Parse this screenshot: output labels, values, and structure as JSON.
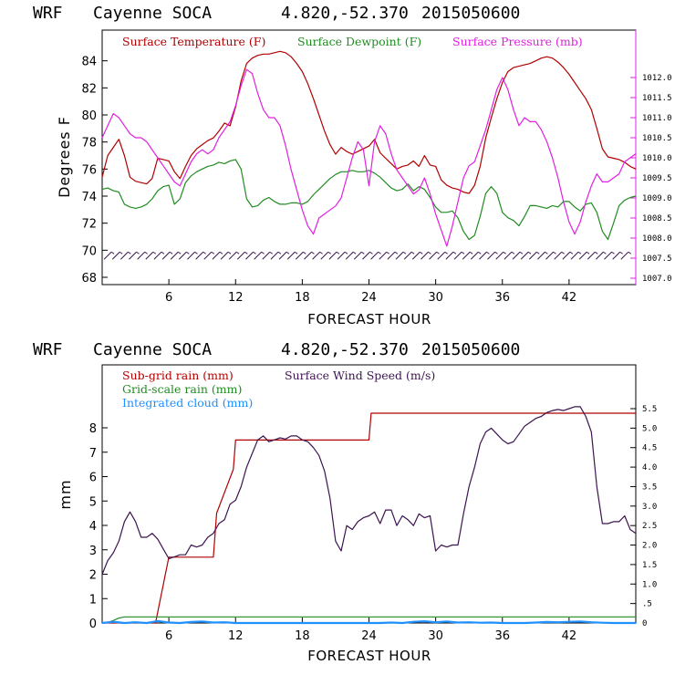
{
  "colors": {
    "temp": "#b00000",
    "dew": "#228b22",
    "pres": "#e020e0",
    "wind": "#3c1450",
    "subgrid": "#b00000",
    "gridscale": "#228b22",
    "cloud": "#1e90ff",
    "barb": "#3c1450"
  },
  "chart_data": [
    {
      "type": "line",
      "header": {
        "model": "WRF",
        "station": "Cayenne SOCA",
        "lat": "4.820,",
        "lon": "-52.370",
        "init": "2015050600"
      },
      "xlabel": "FORECAST HOUR",
      "ylabel": "Degrees F",
      "xlim": [
        0,
        48
      ],
      "ylim": [
        68,
        86
      ],
      "xticks": [
        "6",
        "12",
        "18",
        "24",
        "30",
        "36",
        "42"
      ],
      "yticks": [
        "68",
        "70",
        "72",
        "74",
        "76",
        "78",
        "80",
        "82",
        "84"
      ],
      "y2lim": [
        1007.0,
        1013.0
      ],
      "y2ticks": [
        "1007.0",
        "1007.5",
        "1008.0",
        "1008.5",
        "1009.0",
        "1009.5",
        "1010.0",
        "1010.5",
        "1011.0",
        "1011.5",
        "1012.0"
      ],
      "legend": [
        "Surface Temperature (F)",
        "Surface Dewpoint (F)",
        "Surface Pressure (mb)"
      ],
      "series": [
        {
          "name": "Surface Temperature (F)",
          "axis": "left",
          "x": [
            0,
            0.5,
            1,
            1.5,
            2,
            2.5,
            3,
            3.5,
            4,
            4.5,
            5,
            5.5,
            6,
            6.5,
            7,
            7.5,
            8,
            8.5,
            9,
            9.5,
            10,
            10.5,
            11,
            11.5,
            12,
            12.5,
            13,
            13.5,
            14,
            14.5,
            15,
            15.5,
            16,
            16.5,
            17,
            17.5,
            18,
            18.5,
            19,
            19.5,
            20,
            20.5,
            21,
            21.5,
            22,
            22.5,
            23,
            23.5,
            24,
            24.5,
            25,
            25.5,
            26,
            26.5,
            27,
            27.5,
            28,
            28.5,
            29,
            29.5,
            30,
            30.5,
            31,
            31.5,
            32,
            32.5,
            33,
            33.5,
            34,
            34.5,
            35,
            35.5,
            36,
            36.5,
            37,
            37.5,
            38,
            38.5,
            39,
            39.5,
            40,
            40.5,
            41,
            41.5,
            42,
            42.5,
            43,
            43.5,
            44,
            44.5,
            45,
            45.5,
            46,
            46.5,
            47,
            47.5,
            48
          ],
          "values": [
            75.4,
            77.0,
            77.6,
            78.2,
            77.0,
            75.4,
            75.1,
            75.0,
            74.9,
            75.3,
            76.8,
            76.7,
            76.6,
            75.8,
            75.3,
            76.2,
            77.0,
            77.5,
            77.8,
            78.1,
            78.3,
            78.8,
            79.4,
            79.2,
            80.6,
            82.5,
            83.8,
            84.2,
            84.4,
            84.5,
            84.5,
            84.6,
            84.7,
            84.6,
            84.3,
            83.8,
            83.2,
            82.3,
            81.2,
            80.0,
            78.8,
            77.8,
            77.1,
            77.6,
            77.3,
            77.1,
            77.3,
            77.5,
            77.7,
            78.2,
            77.2,
            76.8,
            76.4,
            76.0,
            76.2,
            76.3,
            76.6,
            76.2,
            77.0,
            76.3,
            76.2,
            75.2,
            74.8,
            74.6,
            74.5,
            74.3,
            74.2,
            74.8,
            76.2,
            78.3,
            79.8,
            81.2,
            82.4,
            83.2,
            83.5,
            83.6,
            83.7,
            83.8,
            84.0,
            84.2,
            84.3,
            84.2,
            83.9,
            83.5,
            83.0,
            82.4,
            81.8,
            81.2,
            80.4,
            79.0,
            77.5,
            76.9,
            76.8,
            76.7,
            76.5,
            76.2,
            76.0
          ]
        },
        {
          "name": "Surface Dewpoint (F)",
          "axis": "left",
          "x": [
            0,
            0.5,
            1,
            1.5,
            2,
            2.5,
            3,
            3.5,
            4,
            4.5,
            5,
            5.5,
            6,
            6.5,
            7,
            7.5,
            8,
            8.5,
            9,
            9.5,
            10,
            10.5,
            11,
            11.5,
            12,
            12.5,
            13,
            13.5,
            14,
            14.5,
            15,
            15.5,
            16,
            16.5,
            17,
            17.5,
            18,
            18.5,
            19,
            19.5,
            20,
            20.5,
            21,
            21.5,
            22,
            22.5,
            23,
            23.5,
            24,
            24.5,
            25,
            25.5,
            26,
            26.5,
            27,
            27.5,
            28,
            28.5,
            29,
            29.5,
            30,
            30.5,
            31,
            31.5,
            32,
            32.5,
            33,
            33.5,
            34,
            34.5,
            35,
            35.5,
            36,
            36.5,
            37,
            37.5,
            38,
            38.5,
            39,
            39.5,
            40,
            40.5,
            41,
            41.5,
            42,
            42.5,
            43,
            43.5,
            44,
            44.5,
            45,
            45.5,
            46,
            46.5,
            47,
            47.5,
            48
          ],
          "values": [
            74.5,
            74.6,
            74.4,
            74.3,
            73.4,
            73.2,
            73.1,
            73.2,
            73.4,
            73.8,
            74.4,
            74.7,
            74.8,
            73.4,
            73.8,
            75.0,
            75.5,
            75.8,
            76.0,
            76.2,
            76.3,
            76.5,
            76.4,
            76.6,
            76.7,
            76.0,
            73.8,
            73.2,
            73.3,
            73.7,
            73.9,
            73.6,
            73.4,
            73.4,
            73.5,
            73.5,
            73.4,
            73.6,
            74.1,
            74.5,
            74.9,
            75.3,
            75.6,
            75.8,
            75.8,
            75.9,
            75.8,
            75.8,
            75.9,
            75.7,
            75.4,
            75.0,
            74.6,
            74.4,
            74.5,
            74.9,
            74.4,
            74.7,
            74.5,
            73.9,
            73.2,
            72.8,
            72.8,
            72.9,
            72.4,
            71.4,
            70.8,
            71.1,
            72.5,
            74.2,
            74.7,
            74.2,
            72.8,
            72.4,
            72.2,
            71.8,
            72.5,
            73.3,
            73.3,
            73.2,
            73.1,
            73.3,
            73.2,
            73.6,
            73.6,
            73.2,
            72.9,
            73.4,
            73.5,
            72.8,
            71.4,
            70.8,
            72.0,
            73.3,
            73.7,
            73.9,
            74.0
          ]
        },
        {
          "name": "Surface Pressure (mb)",
          "axis": "right",
          "x": [
            0,
            0.5,
            1,
            1.5,
            2,
            2.5,
            3,
            3.5,
            4,
            4.5,
            5,
            5.5,
            6,
            6.5,
            7,
            7.5,
            8,
            8.5,
            9,
            9.5,
            10,
            10.5,
            11,
            11.5,
            12,
            12.5,
            13,
            13.5,
            14,
            14.5,
            15,
            15.5,
            16,
            16.5,
            17,
            17.5,
            18,
            18.5,
            19,
            19.5,
            20,
            20.5,
            21,
            21.5,
            22,
            22.5,
            23,
            23.5,
            24,
            24.5,
            25,
            25.5,
            26,
            26.5,
            27,
            27.5,
            28,
            28.5,
            29,
            29.5,
            30,
            30.5,
            31,
            31.5,
            32,
            32.5,
            33,
            33.5,
            34,
            34.5,
            35,
            35.5,
            36,
            36.5,
            37,
            37.5,
            38,
            38.5,
            39,
            39.5,
            40,
            40.5,
            41,
            41.5,
            42,
            42.5,
            43,
            43.5,
            44,
            44.5,
            45,
            45.5,
            46,
            46.5,
            47,
            47.5,
            48
          ],
          "values": [
            1010.5,
            1010.8,
            1011.1,
            1011.0,
            1010.8,
            1010.6,
            1010.5,
            1010.5,
            1010.4,
            1010.2,
            1010.0,
            1009.8,
            1009.6,
            1009.4,
            1009.3,
            1009.6,
            1009.9,
            1010.1,
            1010.2,
            1010.1,
            1010.2,
            1010.5,
            1010.7,
            1010.9,
            1011.3,
            1011.8,
            1012.2,
            1012.1,
            1011.6,
            1011.2,
            1011.0,
            1011.0,
            1010.8,
            1010.3,
            1009.7,
            1009.2,
            1008.7,
            1008.3,
            1008.1,
            1008.5,
            1008.6,
            1008.7,
            1008.8,
            1009.0,
            1009.5,
            1010.0,
            1010.4,
            1010.2,
            1009.3,
            1010.4,
            1010.8,
            1010.6,
            1010.1,
            1009.7,
            1009.5,
            1009.3,
            1009.1,
            1009.2,
            1009.5,
            1009.1,
            1008.6,
            1008.2,
            1007.8,
            1008.3,
            1008.9,
            1009.5,
            1009.8,
            1009.9,
            1010.3,
            1010.7,
            1011.2,
            1011.7,
            1012.0,
            1011.7,
            1011.2,
            1010.8,
            1011.0,
            1010.9,
            1010.9,
            1010.7,
            1010.4,
            1010.0,
            1009.5,
            1008.9,
            1008.4,
            1008.1,
            1008.4,
            1008.9,
            1009.3,
            1009.6,
            1009.4,
            1009.4,
            1009.5,
            1009.6,
            1009.9,
            1010.0,
            1010.1
          ]
        }
      ],
      "wind_barbs": {
        "start": 0.5,
        "end": 47.5,
        "step": 0.75
      }
    },
    {
      "type": "line",
      "header": {
        "model": "WRF",
        "station": "Cayenne SOCA",
        "lat": "4.820,",
        "lon": "-52.370",
        "init": "2015050600"
      },
      "xlabel": "FORECAST HOUR",
      "ylabel": "mm",
      "xlim": [
        0,
        48
      ],
      "ylim": [
        0,
        10.5
      ],
      "xticks": [
        "6",
        "12",
        "18",
        "24",
        "30",
        "36",
        "42"
      ],
      "yticks": [
        "0",
        "1",
        "2",
        "3",
        "4",
        "5",
        "6",
        "7",
        "8"
      ],
      "y2lim": [
        0,
        6.5
      ],
      "y2ticks": [
        "0",
        ".5",
        "1.0",
        "1.5",
        "2.0",
        "2.5",
        "3.0",
        "3.5",
        "4.0",
        "4.5",
        "5.0",
        "5.5"
      ],
      "legend": [
        "Sub-grid rain (mm)",
        "Surface Wind Speed (m/s)",
        "Grid-scale rain (mm)",
        "Integrated cloud (mm)"
      ],
      "series": [
        {
          "name": "Sub-grid rain (mm)",
          "axis": "left",
          "x": [
            0,
            4.8,
            6.0,
            6.2,
            10.0,
            10.3,
            11.8,
            12.0,
            24.0,
            24.2,
            48.0
          ],
          "values": [
            0,
            0,
            2.7,
            2.7,
            2.7,
            4.5,
            6.3,
            7.5,
            7.5,
            8.6,
            8.6
          ]
        },
        {
          "name": "Grid-scale rain (mm)",
          "axis": "left",
          "x": [
            0,
            0.5,
            1,
            1.5,
            2,
            48
          ],
          "values": [
            0,
            0.02,
            0.1,
            0.2,
            0.25,
            0.25
          ]
        },
        {
          "name": "Integrated cloud (mm)",
          "axis": "left",
          "x": [
            0,
            1,
            2,
            3,
            4,
            5,
            6,
            7,
            8,
            9,
            10,
            11,
            12,
            13,
            14,
            15,
            16,
            17,
            18,
            19,
            20,
            21,
            22,
            23,
            24,
            25,
            26,
            27,
            28,
            29,
            30,
            31,
            32,
            33,
            34,
            35,
            36,
            37,
            38,
            39,
            40,
            41,
            42,
            43,
            44,
            45,
            46,
            47,
            48
          ],
          "values": [
            0,
            0.05,
            0,
            0.03,
            0,
            0.08,
            0.02,
            0,
            0.04,
            0.06,
            0.02,
            0.03,
            0,
            0,
            0,
            0,
            0,
            0,
            0,
            0,
            0,
            0,
            0,
            0,
            0,
            0,
            0.02,
            0,
            0.05,
            0.07,
            0.03,
            0.06,
            0.02,
            0.03,
            0.01,
            0.02,
            0,
            0,
            0,
            0.02,
            0.04,
            0.03,
            0.05,
            0.06,
            0.03,
            0.01,
            0,
            0,
            0
          ]
        },
        {
          "name": "Surface Wind Speed (m/s)",
          "axis": "right",
          "x": [
            0,
            0.5,
            1,
            1.5,
            2,
            2.5,
            3,
            3.5,
            4,
            4.5,
            5,
            5.5,
            6,
            6.5,
            7,
            7.5,
            8,
            8.5,
            9,
            9.5,
            10,
            10.5,
            11,
            11.5,
            12,
            12.5,
            13,
            13.5,
            14,
            14.5,
            15,
            15.5,
            16,
            16.5,
            17,
            17.5,
            18,
            18.5,
            19,
            19.5,
            20,
            20.5,
            21,
            21.5,
            22,
            22.5,
            23,
            23.5,
            24,
            24.5,
            25,
            25.5,
            26,
            26.5,
            27,
            27.5,
            28,
            28.5,
            29,
            29.5,
            30,
            30.5,
            31,
            31.5,
            32,
            32.5,
            33,
            33.5,
            34,
            34.5,
            35,
            35.5,
            36,
            36.5,
            37,
            37.5,
            38,
            38.5,
            39,
            39.5,
            40,
            40.5,
            41,
            41.5,
            42,
            42.5,
            43,
            43.5,
            44,
            44.5,
            45,
            45.5,
            46,
            46.5,
            47,
            47.5,
            48
          ],
          "values": [
            1.25,
            1.6,
            1.8,
            2.1,
            2.6,
            2.85,
            2.6,
            2.2,
            2.2,
            2.3,
            2.15,
            1.9,
            1.65,
            1.7,
            1.75,
            1.75,
            2.0,
            1.95,
            2.0,
            2.2,
            2.3,
            2.55,
            2.65,
            3.05,
            3.15,
            3.5,
            4.0,
            4.35,
            4.7,
            4.8,
            4.65,
            4.7,
            4.75,
            4.72,
            4.8,
            4.8,
            4.7,
            4.65,
            4.5,
            4.3,
            3.9,
            3.2,
            2.1,
            1.85,
            2.5,
            2.4,
            2.6,
            2.7,
            2.75,
            2.85,
            2.55,
            2.9,
            2.9,
            2.5,
            2.75,
            2.65,
            2.5,
            2.8,
            2.7,
            2.75,
            1.85,
            2.0,
            1.95,
            2.0,
            2.0,
            2.8,
            3.5,
            4.0,
            4.6,
            4.9,
            5.0,
            4.85,
            4.7,
            4.6,
            4.65,
            4.85,
            5.05,
            5.15,
            5.25,
            5.3,
            5.4,
            5.45,
            5.48,
            5.45,
            5.5,
            5.55,
            5.55,
            5.3,
            4.9,
            3.5,
            2.55,
            2.55,
            2.6,
            2.6,
            2.75,
            2.4,
            2.3
          ]
        }
      ]
    }
  ]
}
